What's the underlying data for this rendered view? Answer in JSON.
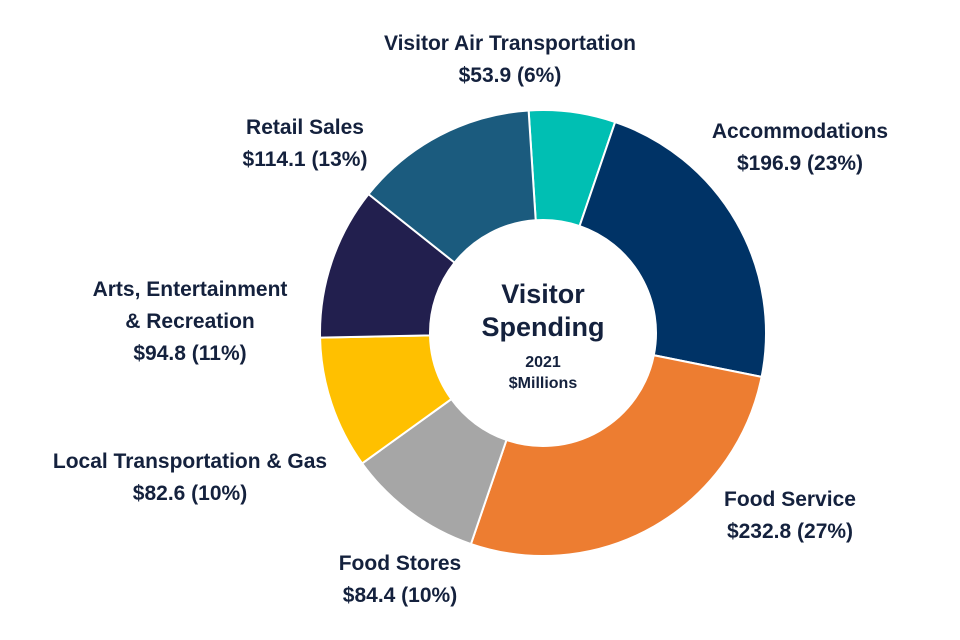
{
  "chart_data": {
    "type": "pie",
    "donut": true,
    "title": "Visitor Spending",
    "subtitle": "2021",
    "unit_label": "$Millions",
    "categories": [
      "Visitor Air Transportation",
      "Accommodations",
      "Food Service",
      "Food Stores",
      "Local Transportation & Gas",
      "Arts, Entertainment & Recreation",
      "Retail Sales"
    ],
    "values": [
      53.9,
      196.9,
      232.8,
      84.4,
      82.6,
      94.8,
      114.1
    ],
    "slices": [
      {
        "name": "Visitor Air Transportation",
        "value": 53.9,
        "percent": 6,
        "color": "#00bfb3",
        "label_lines": [
          "Visitor Air Transportation"
        ],
        "value_label": "$53.9 (6%)"
      },
      {
        "name": "Accommodations",
        "value": 196.9,
        "percent": 23,
        "color": "#003366",
        "label_lines": [
          "Accommodations"
        ],
        "value_label": "$196.9 (23%)"
      },
      {
        "name": "Food Service",
        "value": 232.8,
        "percent": 27,
        "color": "#ed7d31",
        "label_lines": [
          "Food Service"
        ],
        "value_label": "$232.8 (27%)"
      },
      {
        "name": "Food Stores",
        "value": 84.4,
        "percent": 10,
        "color": "#a6a6a6",
        "label_lines": [
          "Food Stores"
        ],
        "value_label": "$84.4 (10%)"
      },
      {
        "name": "Local Transportation & Gas",
        "value": 82.6,
        "percent": 10,
        "color": "#ffc000",
        "label_lines": [
          "Local Transportation & Gas"
        ],
        "value_label": "$82.6 (10%)"
      },
      {
        "name": "Arts, Entertainment & Recreation",
        "value": 94.8,
        "percent": 11,
        "color": "#221f4e",
        "label_lines": [
          "Arts, Entertainment",
          "& Recreation"
        ],
        "value_label": "$94.8 (11%)"
      },
      {
        "name": "Retail Sales",
        "value": 114.1,
        "percent": 13,
        "color": "#1b5b7e",
        "label_lines": [
          "Retail Sales"
        ],
        "value_label": "$114.1 (13%)"
      }
    ],
    "legend": "none"
  }
}
